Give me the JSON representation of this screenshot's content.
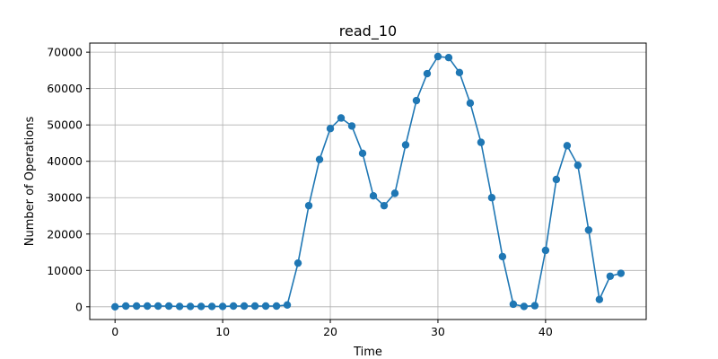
{
  "chart_data": {
    "type": "line",
    "title": "read_10",
    "xlabel": "Time",
    "ylabel": "Number of Operations",
    "xlim": [
      -2.35,
      49.35
    ],
    "ylim": [
      -3500,
      72500
    ],
    "xticks": [
      0,
      10,
      20,
      30,
      40
    ],
    "yticks": [
      0,
      10000,
      20000,
      30000,
      40000,
      50000,
      60000,
      70000
    ],
    "grid": true,
    "marker": "circle",
    "color": "#1f77b4",
    "series": [
      {
        "x": [
          0,
          1,
          2,
          3,
          4,
          5,
          6,
          7,
          8,
          9,
          10,
          11,
          12,
          13,
          14,
          15,
          16,
          17,
          18,
          19,
          20,
          21,
          22,
          23,
          24,
          25,
          26,
          27,
          28,
          29,
          30,
          31,
          32,
          33,
          34,
          35,
          36,
          37,
          38,
          39,
          40,
          41,
          42,
          43,
          44,
          45,
          46,
          47
        ],
        "values": [
          0,
          200,
          200,
          200,
          200,
          200,
          100,
          100,
          100,
          100,
          100,
          200,
          200,
          200,
          200,
          200,
          500,
          12000,
          27800,
          40500,
          49000,
          51900,
          49700,
          42200,
          30500,
          27800,
          31200,
          44500,
          56700,
          64100,
          68800,
          68500,
          64400,
          56000,
          45200,
          30000,
          13800,
          700,
          100,
          300,
          15500,
          35000,
          44300,
          38900,
          21100,
          2000,
          8400,
          9200
        ]
      }
    ]
  }
}
